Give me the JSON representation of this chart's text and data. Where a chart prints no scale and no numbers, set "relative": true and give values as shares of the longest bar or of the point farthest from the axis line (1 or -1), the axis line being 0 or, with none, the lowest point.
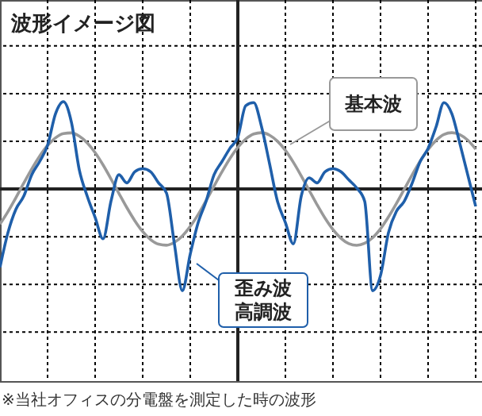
{
  "chart_data": {
    "type": "line",
    "title": "波形イメージ図",
    "relative": true,
    "grid": true,
    "legend": false,
    "marker": "none",
    "line_style": "solid",
    "categories": [
      null,
      null,
      null,
      null,
      null,
      null,
      null,
      null,
      null,
      null,
      null,
      null,
      null,
      null,
      null,
      null,
      null,
      null,
      null,
      null,
      null,
      null,
      null,
      null,
      null,
      null,
      null,
      null,
      null,
      null,
      null,
      null,
      null,
      null,
      null,
      null,
      null,
      null,
      null,
      null,
      null,
      null,
      null,
      null,
      null,
      null,
      null,
      null,
      null,
      null,
      null,
      null,
      null,
      null,
      null,
      null,
      null,
      null,
      null,
      null,
      null
    ],
    "series": [
      {
        "name": "基本波",
        "color": "#999999",
        "values": [
          -0.346,
          -0.223,
          -0.086,
          0.058,
          0.197,
          0.323,
          0.428,
          0.504,
          0.546,
          0.552,
          0.52,
          0.454,
          0.358,
          0.237,
          0.1,
          -0.043,
          -0.183,
          -0.311,
          -0.419,
          -0.498,
          -0.543,
          -0.553,
          -0.525,
          -0.462,
          -0.368,
          -0.25,
          -0.114,
          0.029,
          0.169,
          0.299,
          0.409,
          0.491,
          0.541,
          0.554,
          0.53,
          0.47,
          0.38,
          0.263,
          0.129,
          -0.013,
          -0.155,
          -0.287,
          -0.399,
          -0.484,
          -0.537,
          -0.554,
          -0.534,
          -0.48,
          -0.391,
          -0.275,
          -0.143,
          -0.001,
          0.141,
          0.274,
          0.389,
          0.478,
          0.536,
          0.554,
          0.535,
          0.481,
          0.393
        ]
      },
      {
        "name": "歪み波高調波",
        "color": "#1f5faa",
        "values": [
          -0.77,
          -0.43,
          -0.2,
          -0.07,
          0.14,
          0.27,
          0.43,
          0.74,
          0.86,
          0.66,
          0.19,
          -0.07,
          -0.28,
          -0.49,
          -0.12,
          0.14,
          0.06,
          0.17,
          0.2,
          0.17,
          0.06,
          -0.04,
          -0.54,
          -1.0,
          -0.64,
          -0.33,
          -0.12,
          0.14,
          0.27,
          0.4,
          0.51,
          0.82,
          0.85,
          0.61,
          0.25,
          -0.12,
          -0.33,
          -0.54,
          -0.07,
          0.11,
          0.06,
          0.17,
          0.2,
          0.17,
          0.09,
          0.01,
          -0.12,
          -1.0,
          -0.85,
          -0.43,
          -0.22,
          -0.12,
          0.06,
          0.27,
          0.4,
          0.61,
          0.85,
          0.74,
          0.45,
          0.14,
          -0.17
        ]
      }
    ],
    "annotations": [
      "※当社オフィスの分電盤を測定した時の波形"
    ]
  }
}
